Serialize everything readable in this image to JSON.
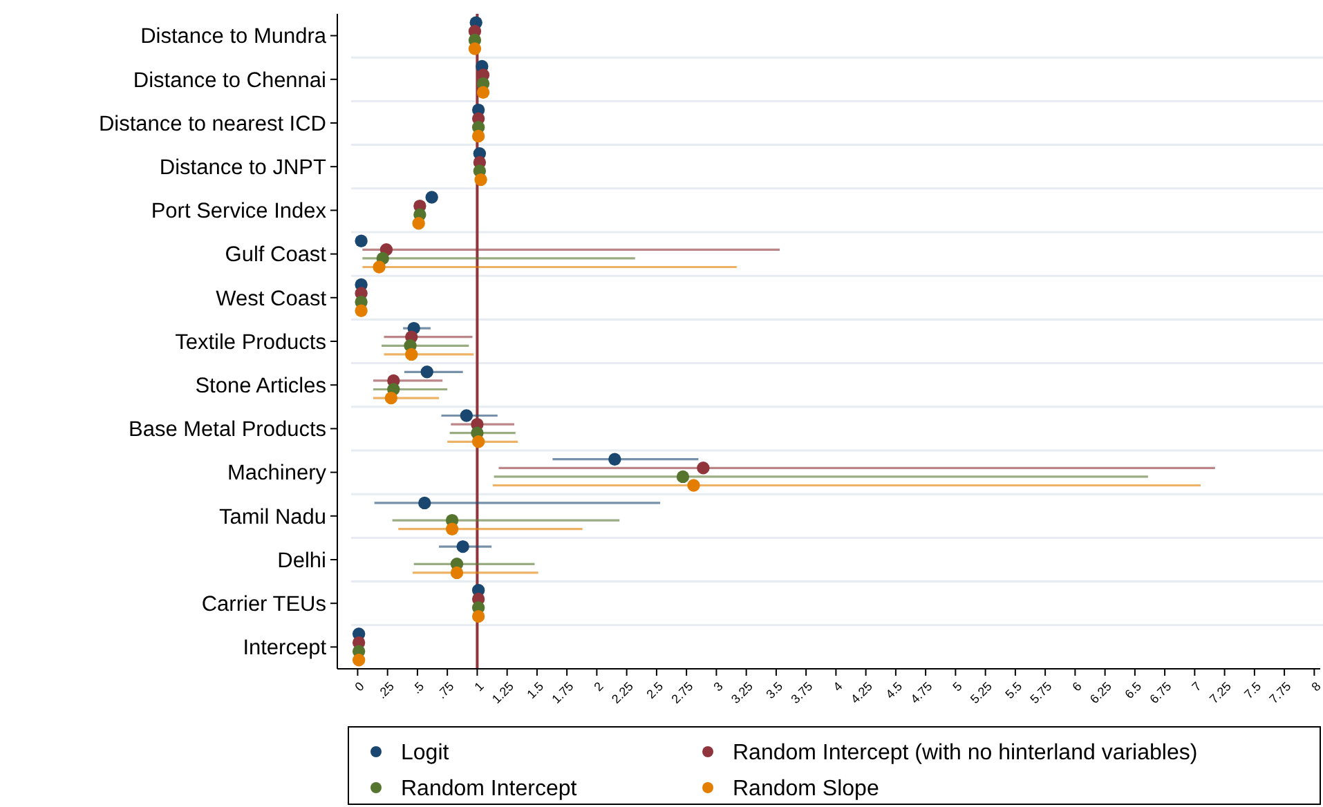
{
  "chart_data": {
    "type": "scatter",
    "orientation": "horizontal",
    "categories": [
      "Distance to Mundra",
      "Distance to Chennai",
      "Distance to nearest ICD",
      "Distance to JNPT",
      "Port Service Index",
      "Gulf Coast",
      "West Coast",
      "Textile Products",
      "Stone Articles",
      "Base Metal Products",
      "Machinery",
      "Tamil Nadu",
      "Delhi",
      "Carrier TEUs",
      "Intercept"
    ],
    "series": [
      {
        "name": "Logit",
        "color": "#1a476f",
        "values": [
          0.99,
          1.04,
          1.01,
          1.02,
          0.62,
          0.03,
          0.03,
          0.47,
          0.58,
          0.91,
          2.15,
          0.56,
          0.88,
          1.01,
          0.01
        ],
        "errors": [
          null,
          null,
          null,
          null,
          null,
          null,
          null,
          [
            0.38,
            0.61
          ],
          [
            0.39,
            0.88
          ],
          [
            0.7,
            1.17
          ],
          [
            1.63,
            2.85
          ],
          [
            0.14,
            2.53
          ],
          [
            0.68,
            1.12
          ],
          null,
          null
        ]
      },
      {
        "name": "Random Intercept (with no hinterland variables)",
        "color": "#90353b",
        "values": [
          0.98,
          1.05,
          1.01,
          1.02,
          0.52,
          0.24,
          0.03,
          0.45,
          0.3,
          1.0,
          2.89,
          null,
          null,
          1.01,
          0.01
        ],
        "errors": [
          null,
          null,
          null,
          null,
          null,
          [
            0.04,
            3.53
          ],
          null,
          [
            0.22,
            0.96
          ],
          [
            0.13,
            0.71
          ],
          [
            0.78,
            1.31
          ],
          [
            1.18,
            7.17
          ],
          null,
          null,
          null,
          null
        ]
      },
      {
        "name": "Random Intercept",
        "color": "#55752f",
        "values": [
          0.98,
          1.05,
          1.01,
          1.02,
          0.52,
          0.21,
          0.03,
          0.44,
          0.3,
          1.0,
          2.72,
          0.79,
          0.83,
          1.01,
          0.01
        ],
        "errors": [
          null,
          null,
          null,
          null,
          null,
          [
            0.04,
            2.32
          ],
          null,
          [
            0.2,
            0.93
          ],
          [
            0.13,
            0.75
          ],
          [
            0.77,
            1.32
          ],
          [
            1.14,
            6.61
          ],
          [
            0.29,
            2.19
          ],
          [
            0.47,
            1.48
          ],
          null,
          null
        ]
      },
      {
        "name": "Random Slope",
        "color": "#e37e00",
        "values": [
          0.98,
          1.05,
          1.01,
          1.03,
          0.51,
          0.18,
          0.03,
          0.45,
          0.28,
          1.01,
          2.81,
          0.79,
          0.83,
          1.01,
          0.01
        ],
        "errors": [
          null,
          null,
          null,
          null,
          null,
          [
            0.04,
            3.17
          ],
          null,
          [
            0.22,
            0.97
          ],
          [
            0.13,
            0.68
          ],
          [
            0.75,
            1.34
          ],
          [
            1.13,
            7.05
          ],
          [
            0.34,
            1.88
          ],
          [
            0.46,
            1.51
          ],
          null,
          null
        ]
      }
    ],
    "xlim": [
      -0.17,
      8.05
    ],
    "xticks": [
      0,
      {
        "value": 0.25,
        "label": ".25"
      },
      {
        "value": 0.5,
        "label": ".5"
      },
      {
        "value": 0.75,
        "label": ".75"
      },
      1,
      1.25,
      1.5,
      1.75,
      2,
      2.25,
      2.5,
      2.75,
      3,
      3.25,
      3.5,
      3.75,
      4,
      4.25,
      4.5,
      4.75,
      5,
      5.25,
      5.5,
      5.75,
      6,
      6.25,
      6.5,
      6.75,
      7,
      7.25,
      7.5,
      7.75,
      8
    ],
    "ref_lines": [
      {
        "axis": "x",
        "value": 1,
        "color": "#90353b"
      }
    ],
    "grid": "y",
    "legend": "bottom",
    "marker": "circle"
  }
}
